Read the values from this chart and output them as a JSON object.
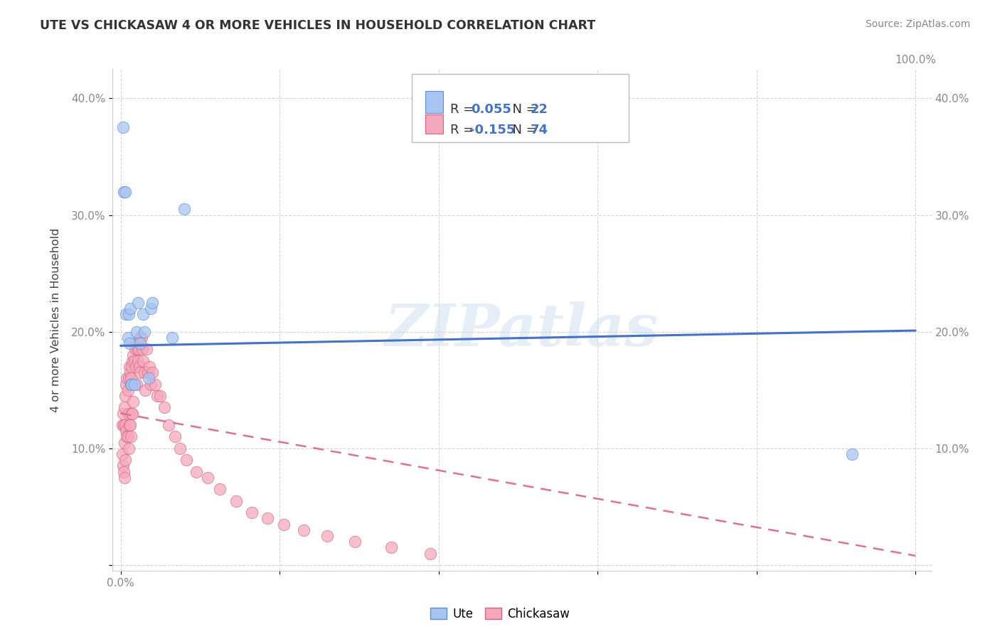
{
  "title": "UTE VS CHICKASAW 4 OR MORE VEHICLES IN HOUSEHOLD CORRELATION CHART",
  "source": "Source: ZipAtlas.com",
  "ylabel": "4 or more Vehicles in Household",
  "ute_color": "#a8c4f0",
  "ute_edge_color": "#5b8ed6",
  "chickasaw_color": "#f5a8bc",
  "chickasaw_edge_color": "#d96080",
  "ute_line_color": "#4472c4",
  "chickasaw_line_color": "#e07090",
  "watermark": "ZIPatlas",
  "R_ute": 0.055,
  "N_ute": 22,
  "R_chickasaw": -0.155,
  "N_chickasaw": 74,
  "ute_x": [
    0.003,
    0.004,
    0.006,
    0.007,
    0.009,
    0.01,
    0.011,
    0.012,
    0.013,
    0.014,
    0.017,
    0.02,
    0.022,
    0.025,
    0.028,
    0.03,
    0.035,
    0.038,
    0.04,
    0.065,
    0.08,
    0.92
  ],
  "ute_y": [
    0.375,
    0.32,
    0.32,
    0.215,
    0.195,
    0.215,
    0.19,
    0.22,
    0.155,
    0.155,
    0.155,
    0.2,
    0.225,
    0.19,
    0.215,
    0.2,
    0.16,
    0.22,
    0.225,
    0.195,
    0.305,
    0.095
  ],
  "chickasaw_x": [
    0.002,
    0.002,
    0.003,
    0.003,
    0.004,
    0.004,
    0.005,
    0.005,
    0.005,
    0.006,
    0.006,
    0.006,
    0.007,
    0.007,
    0.008,
    0.008,
    0.009,
    0.009,
    0.01,
    0.01,
    0.01,
    0.011,
    0.011,
    0.012,
    0.012,
    0.013,
    0.013,
    0.014,
    0.014,
    0.015,
    0.015,
    0.016,
    0.016,
    0.017,
    0.018,
    0.019,
    0.02,
    0.02,
    0.021,
    0.022,
    0.023,
    0.024,
    0.025,
    0.025,
    0.026,
    0.027,
    0.028,
    0.03,
    0.031,
    0.033,
    0.034,
    0.036,
    0.038,
    0.04,
    0.043,
    0.046,
    0.05,
    0.055,
    0.06,
    0.068,
    0.075,
    0.083,
    0.095,
    0.11,
    0.125,
    0.145,
    0.165,
    0.185,
    0.205,
    0.23,
    0.26,
    0.295,
    0.34,
    0.39
  ],
  "chickasaw_y": [
    0.12,
    0.095,
    0.13,
    0.085,
    0.12,
    0.08,
    0.135,
    0.105,
    0.075,
    0.145,
    0.12,
    0.09,
    0.155,
    0.115,
    0.16,
    0.11,
    0.15,
    0.11,
    0.16,
    0.13,
    0.1,
    0.17,
    0.12,
    0.165,
    0.12,
    0.16,
    0.11,
    0.17,
    0.13,
    0.175,
    0.13,
    0.18,
    0.14,
    0.175,
    0.185,
    0.17,
    0.19,
    0.155,
    0.185,
    0.175,
    0.185,
    0.17,
    0.195,
    0.165,
    0.195,
    0.185,
    0.175,
    0.165,
    0.15,
    0.185,
    0.165,
    0.17,
    0.155,
    0.165,
    0.155,
    0.145,
    0.145,
    0.135,
    0.12,
    0.11,
    0.1,
    0.09,
    0.08,
    0.075,
    0.065,
    0.055,
    0.045,
    0.04,
    0.035,
    0.03,
    0.025,
    0.02,
    0.015,
    0.01
  ],
  "ute_line_x0": 0.0,
  "ute_line_x1": 1.0,
  "ute_line_y0": 0.188,
  "ute_line_y1": 0.201,
  "chick_line_x0": 0.0,
  "chick_line_x1": 1.0,
  "chick_line_y0": 0.13,
  "chick_line_y1": 0.008,
  "xlim": [
    -0.01,
    1.02
  ],
  "ylim": [
    -0.005,
    0.425
  ],
  "xticks": [
    0.0,
    0.2,
    0.4,
    0.6,
    0.8,
    1.0
  ],
  "xticklabels_left": [
    "0.0%",
    "",
    "",
    "",
    "",
    ""
  ],
  "xticklabels_right": [
    "",
    "",
    "",
    "",
    "",
    "100.0%"
  ],
  "yticks": [
    0.0,
    0.1,
    0.2,
    0.3,
    0.4
  ],
  "yticklabels_left": [
    "",
    "10.0%",
    "20.0%",
    "30.0%",
    "40.0%"
  ],
  "yticklabels_right": [
    "",
    "10.0%",
    "20.0%",
    "30.0%",
    "40.0%"
  ],
  "background_color": "#ffffff",
  "grid_color": "#d0d0d0",
  "tick_color": "#888888",
  "title_color": "#333333",
  "source_color": "#888888",
  "legend_text_color": "#333333",
  "legend_value_color": "#4472c4"
}
